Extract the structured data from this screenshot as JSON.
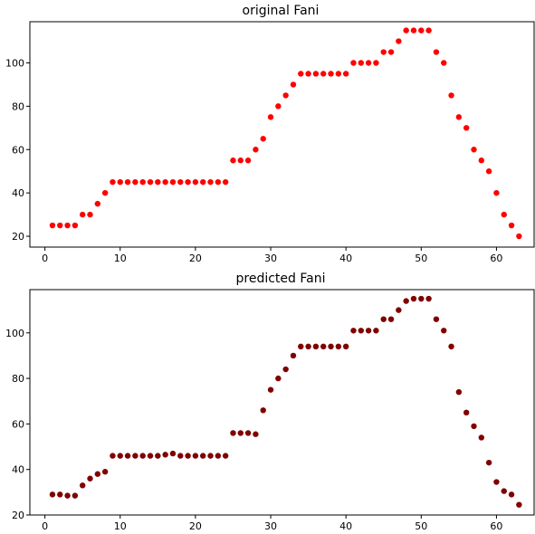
{
  "chart_data": [
    {
      "type": "scatter",
      "title": "original Fani",
      "xlabel": "",
      "ylabel": "",
      "xlim": [
        -2,
        65
      ],
      "ylim": [
        15,
        119
      ],
      "xticks": [
        0,
        10,
        20,
        30,
        40,
        50,
        60
      ],
      "yticks": [
        20,
        40,
        60,
        80,
        100
      ],
      "grid": false,
      "color": "#ff0000",
      "x": [
        1,
        2,
        3,
        4,
        5,
        6,
        7,
        8,
        9,
        10,
        11,
        12,
        13,
        14,
        15,
        16,
        17,
        18,
        19,
        20,
        21,
        22,
        23,
        24,
        25,
        26,
        27,
        28,
        29,
        30,
        31,
        32,
        33,
        34,
        35,
        36,
        37,
        38,
        39,
        40,
        41,
        42,
        43,
        44,
        45,
        46,
        47,
        48,
        49,
        50,
        51,
        52,
        53,
        54,
        55,
        56,
        57,
        58,
        59,
        60,
        61,
        62,
        63
      ],
      "y": [
        25,
        25,
        25,
        25,
        30,
        30,
        35,
        40,
        45,
        45,
        45,
        45,
        45,
        45,
        45,
        45,
        45,
        45,
        45,
        45,
        45,
        45,
        45,
        45,
        55,
        55,
        55,
        60,
        65,
        75,
        80,
        85,
        90,
        95,
        95,
        95,
        95,
        95,
        95,
        95,
        100,
        100,
        100,
        100,
        105,
        105,
        110,
        115,
        115,
        115,
        115,
        105,
        100,
        85,
        75,
        70,
        60,
        55,
        50,
        40,
        30,
        25,
        20
      ]
    },
    {
      "type": "scatter",
      "title": "predicted Fani",
      "xlabel": "",
      "ylabel": "",
      "xlim": [
        -2,
        65
      ],
      "ylim": [
        20,
        119
      ],
      "xticks": [
        0,
        10,
        20,
        30,
        40,
        50,
        60
      ],
      "yticks": [
        20,
        40,
        60,
        80,
        100
      ],
      "grid": false,
      "color": "#800000",
      "x": [
        1,
        2,
        3,
        4,
        5,
        6,
        7,
        8,
        9,
        10,
        11,
        12,
        13,
        14,
        15,
        16,
        17,
        18,
        19,
        20,
        21,
        22,
        23,
        24,
        25,
        26,
        27,
        28,
        29,
        30,
        31,
        32,
        33,
        34,
        35,
        36,
        37,
        38,
        39,
        40,
        41,
        42,
        43,
        44,
        45,
        46,
        47,
        48,
        49,
        50,
        51,
        52,
        53,
        54,
        55,
        56,
        57,
        58,
        59,
        60,
        61,
        62,
        63
      ],
      "y": [
        29,
        29,
        28.5,
        28.5,
        33,
        36,
        38,
        39,
        46,
        46,
        46,
        46,
        46,
        46,
        46,
        46.5,
        47,
        46,
        46,
        46,
        46,
        46,
        46,
        46,
        56,
        56,
        56,
        55.5,
        66,
        75,
        80,
        84,
        90,
        94,
        94,
        94,
        94,
        94,
        94,
        94,
        101,
        101,
        101,
        101,
        106,
        106,
        110,
        114,
        115,
        115,
        115,
        106,
        101,
        94,
        74,
        65,
        59,
        54,
        43,
        34.5,
        30.5,
        29,
        24.5
      ]
    }
  ]
}
